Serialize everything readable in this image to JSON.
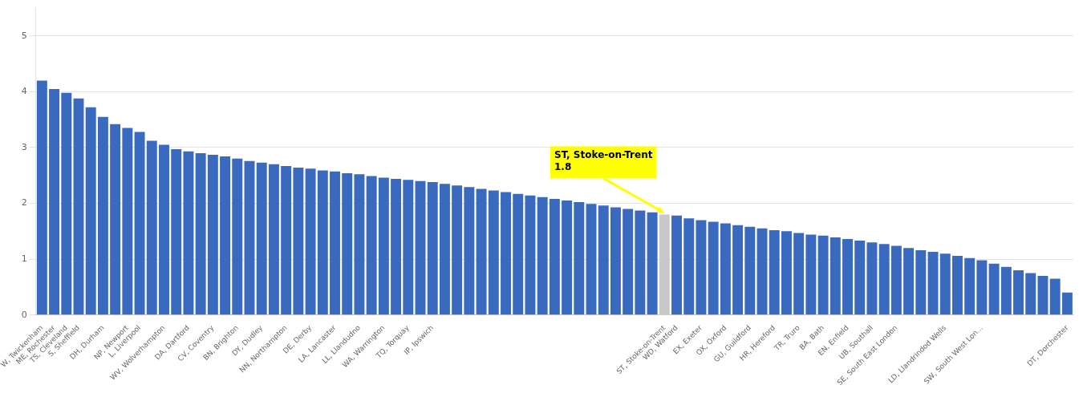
{
  "chart_data": {
    "type": "bar",
    "categories": [
      "W, Twickenham",
      "ME, Rochester",
      "TS, Cleveland",
      "S, Sheffield",
      null,
      "DH, Durham",
      null,
      "NP, Newport",
      "L, Liverpool",
      null,
      "WV, Wolverhampton",
      null,
      "DA, Dartford",
      null,
      "CV, Coventry",
      null,
      "BN, Brighton",
      null,
      "DY, Dudley",
      null,
      "NN, Northampton",
      null,
      "DE, Derby",
      null,
      "LA, Lancaster",
      null,
      "LL, Llandudno",
      null,
      "WA, Warrington",
      null,
      "TQ, Torquay",
      null,
      "IP, Ipswich",
      null,
      null,
      null,
      null,
      null,
      null,
      null,
      null,
      null,
      null,
      null,
      null,
      null,
      null,
      null,
      null,
      null,
      null,
      "ST, Stoke-on-Trent",
      "WD, Watford",
      null,
      "EX, Exeter",
      null,
      "OX, Oxford",
      null,
      "GU, Guildford",
      null,
      "HR, Hereford",
      null,
      "TR, Truro",
      null,
      "BA, Bath",
      null,
      "EN, Enfield",
      null,
      "UB, Southall",
      null,
      "SE, South East London",
      null,
      null,
      null,
      "LD, Llandrindod Wells",
      null,
      null,
      "SW, South West Lon...",
      null,
      null,
      null,
      null,
      null,
      null,
      "DT, Dorchester"
    ],
    "values": [
      4.2,
      4.05,
      3.98,
      3.88,
      3.72,
      3.55,
      3.42,
      3.35,
      3.28,
      3.12,
      3.05,
      2.97,
      2.93,
      2.9,
      2.87,
      2.84,
      2.8,
      2.76,
      2.73,
      2.7,
      2.67,
      2.64,
      2.62,
      2.59,
      2.57,
      2.54,
      2.52,
      2.49,
      2.46,
      2.44,
      2.42,
      2.4,
      2.38,
      2.35,
      2.32,
      2.29,
      2.26,
      2.23,
      2.2,
      2.17,
      2.14,
      2.11,
      2.08,
      2.05,
      2.02,
      1.99,
      1.96,
      1.93,
      1.9,
      1.87,
      1.84,
      1.8,
      1.78,
      1.73,
      1.7,
      1.67,
      1.64,
      1.61,
      1.58,
      1.55,
      1.52,
      1.5,
      1.47,
      1.44,
      1.42,
      1.39,
      1.36,
      1.33,
      1.3,
      1.27,
      1.24,
      1.2,
      1.16,
      1.13,
      1.1,
      1.06,
      1.02,
      0.98,
      0.92,
      0.86,
      0.8,
      0.75,
      0.7,
      0.65,
      0.4
    ],
    "colors": [
      "#3a6abf",
      "#3a6abf",
      "#3a6abf",
      "#3a6abf",
      "#3a6abf",
      "#3a6abf",
      "#3a6abf",
      "#3a6abf",
      "#3a6abf",
      "#3a6abf",
      "#3a6abf",
      "#3a6abf",
      "#3a6abf",
      "#3a6abf",
      "#3a6abf",
      "#3a6abf",
      "#3a6abf",
      "#3a6abf",
      "#3a6abf",
      "#3a6abf",
      "#3a6abf",
      "#3a6abf",
      "#3a6abf",
      "#3a6abf",
      "#3a6abf",
      "#3a6abf",
      "#3a6abf",
      "#3a6abf",
      "#3a6abf",
      "#3a6abf",
      "#3a6abf",
      "#3a6abf",
      "#3a6abf",
      "#3a6abf",
      "#3a6abf",
      "#3a6abf",
      "#3a6abf",
      "#3a6abf",
      "#3a6abf",
      "#3a6abf",
      "#3a6abf",
      "#3a6abf",
      "#3a6abf",
      "#3a6abf",
      "#3a6abf",
      "#3a6abf",
      "#3a6abf",
      "#3a6abf",
      "#3a6abf",
      "#3a6abf",
      "#3a6abf",
      "#c8c8c8",
      "#3a6abf",
      "#3a6abf",
      "#3a6abf",
      "#3a6abf",
      "#3a6abf",
      "#3a6abf",
      "#3a6abf",
      "#3a6abf",
      "#3a6abf",
      "#3a6abf",
      "#3a6abf",
      "#3a6abf",
      "#3a6abf",
      "#3a6abf",
      "#3a6abf",
      "#3a6abf",
      "#3a6abf",
      "#3a6abf",
      "#3a6abf",
      "#3a6abf",
      "#3a6abf",
      "#3a6abf",
      "#3a6abf",
      "#3a6abf",
      "#3a6abf",
      "#3a6abf",
      "#3a6abf",
      "#3a6abf",
      "#3a6abf",
      "#3a6abf",
      "#3a6abf",
      "#3a6abf",
      "#3a6abf"
    ],
    "ylim": [
      0,
      5.5
    ],
    "yticks": [
      0,
      1,
      2,
      3,
      4,
      5
    ],
    "grid": true,
    "annotations": [
      {
        "text": "ST, Stoke-on-Trent\n1.8",
        "x": "ST, Stoke-on-Trent",
        "y": 1.8,
        "color": "#ffff00"
      }
    ]
  }
}
